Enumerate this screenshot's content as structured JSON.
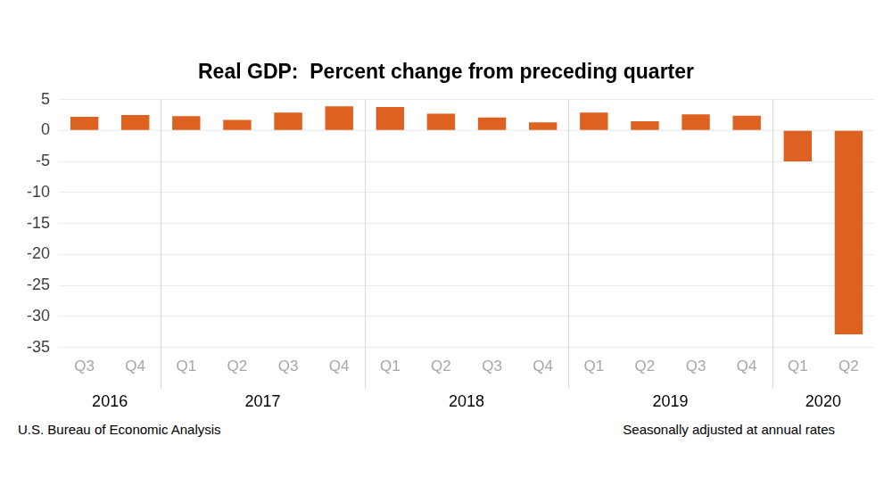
{
  "chart_data": {
    "type": "bar",
    "title": "Real GDP:  Percent change from preceding quarter",
    "categories": [
      "Q3",
      "Q4",
      "Q1",
      "Q2",
      "Q3",
      "Q4",
      "Q1",
      "Q2",
      "Q3",
      "Q4",
      "Q1",
      "Q2",
      "Q3",
      "Q4",
      "Q1",
      "Q2"
    ],
    "groups": [
      "2016",
      "2016",
      "2017",
      "2017",
      "2017",
      "2017",
      "2018",
      "2018",
      "2018",
      "2018",
      "2019",
      "2019",
      "2019",
      "2019",
      "2020",
      "2020"
    ],
    "values": [
      2.2,
      2.5,
      2.3,
      1.7,
      2.9,
      3.9,
      3.8,
      2.7,
      2.1,
      1.3,
      2.9,
      1.5,
      2.6,
      2.4,
      -5.0,
      -32.9
    ],
    "color": "#dd6121",
    "ylim": [
      -35,
      5
    ],
    "yticks": [
      -35,
      -30,
      -25,
      -20,
      -15,
      -10,
      -5,
      0,
      5
    ],
    "grid": true,
    "source": "U.S. Bureau of Economic Analysis",
    "note": "Seasonally adjusted at annual rates"
  }
}
